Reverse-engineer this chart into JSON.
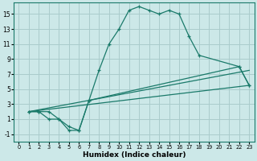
{
  "xlabel": "Humidex (Indice chaleur)",
  "xlim": [
    -0.5,
    23.5
  ],
  "ylim": [
    -2.0,
    16.5
  ],
  "yticks": [
    -1,
    1,
    3,
    5,
    7,
    9,
    11,
    13,
    15
  ],
  "xticks": [
    0,
    1,
    2,
    3,
    4,
    5,
    6,
    7,
    8,
    9,
    10,
    11,
    12,
    13,
    14,
    15,
    16,
    17,
    18,
    19,
    20,
    21,
    22,
    23
  ],
  "bg_color": "#cce8e8",
  "grid_color": "#aacccc",
  "line_color": "#1a7a6a",
  "curve1_x": [
    1,
    2,
    3,
    4,
    5,
    6,
    7,
    8,
    9,
    10,
    11,
    12,
    13,
    14,
    15,
    16,
    17,
    18,
    22,
    23
  ],
  "curve1_y": [
    2,
    2,
    2,
    1,
    0,
    -0.5,
    3.5,
    7.5,
    11,
    13,
    15.5,
    16,
    15.5,
    15,
    15.5,
    15,
    12,
    9.5,
    8,
    5.5
  ],
  "curve2_x": [
    1,
    2,
    3,
    4,
    5,
    6,
    7,
    22,
    23
  ],
  "curve2_y": [
    2,
    2,
    1,
    1,
    -0.5,
    -0.5,
    3.5,
    8,
    5.5
  ],
  "line3_x": [
    1,
    23
  ],
  "line3_y": [
    2,
    5.5
  ],
  "line4_x": [
    1,
    23
  ],
  "line4_y": [
    2,
    7.5
  ]
}
